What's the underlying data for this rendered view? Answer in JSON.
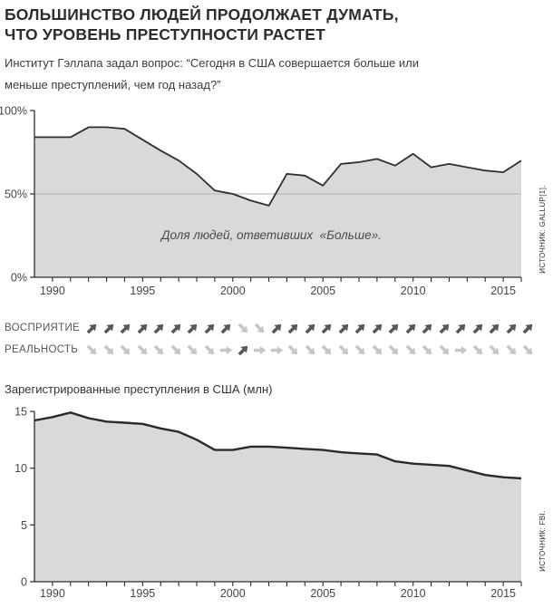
{
  "header": {
    "title_line1": "БОЛЬШИНСТВО ЛЮДЕЙ ПРОДОЛЖАЕТ ДУМАТЬ,",
    "title_line2": "ЧТО УРОВЕНЬ ПРЕСТУПНОСТИ РАСТЕТ",
    "subtitle_line1": "Институт Гэллапа задал вопрос: “Сегодня в США совершается больше или",
    "subtitle_line2": "меньше преступлений, чем год назад?”"
  },
  "perception_reality": {
    "perception_label": "ВОСПРИЯТИЕ",
    "reality_label": "РЕАЛЬНОСТЬ",
    "arrow_colors": {
      "dark": "#58585a",
      "light": "#c5c6c8"
    },
    "perception_pattern": [
      {
        "dir": "ne",
        "tone": "dark",
        "count": 9
      },
      {
        "dir": "se",
        "tone": "light",
        "count": 2
      },
      {
        "dir": "ne",
        "tone": "dark",
        "count": 16
      }
    ],
    "reality_pattern": [
      {
        "dir": "se",
        "tone": "light",
        "count": 8
      },
      {
        "dir": "e",
        "tone": "light",
        "count": 1
      },
      {
        "dir": "ne",
        "tone": "dark",
        "count": 1
      },
      {
        "dir": "e",
        "tone": "light",
        "count": 2
      },
      {
        "dir": "se",
        "tone": "light",
        "count": 10
      },
      {
        "dir": "e",
        "tone": "light",
        "count": 1
      },
      {
        "dir": "se",
        "tone": "light",
        "count": 4
      }
    ]
  },
  "chart_data": [
    {
      "type": "area",
      "title": "",
      "annotation": "Доля людей, ответивших  «Больше».",
      "source": "ИСТОЧНИК: GALLUP[1].",
      "xlabel": "",
      "ylabel": "",
      "xlim": [
        1989,
        2016
      ],
      "ylim": [
        0,
        100
      ],
      "xticks": [
        1990,
        1995,
        2000,
        2005,
        2010,
        2015
      ],
      "yticks": [
        {
          "value": 100,
          "label": "100%"
        },
        {
          "value": 50,
          "label": "50%"
        },
        {
          "value": 0,
          "label": "0%"
        }
      ],
      "gridline_at": 50,
      "fill_color": "#d9d9d9",
      "line_color": "#2f2f31",
      "x": [
        1989,
        1990,
        1991,
        1992,
        1993,
        1994,
        1996,
        1997,
        1998,
        1999,
        2000,
        2001,
        2002,
        2003,
        2004,
        2005,
        2006,
        2007,
        2008,
        2009,
        2010,
        2011,
        2012,
        2013,
        2014,
        2015,
        2016
      ],
      "values": [
        84,
        84,
        84,
        90,
        90,
        89,
        76,
        70,
        62,
        52,
        50,
        46,
        43,
        62,
        61,
        55,
        68,
        69,
        71,
        67,
        74,
        66,
        68,
        66,
        64,
        63,
        70
      ]
    },
    {
      "type": "area",
      "title": "Зарегистрированные преступления в США (млн)",
      "annotation": "",
      "source": "ИСТОЧНИК: FBI.",
      "xlabel": "",
      "ylabel": "",
      "xlim": [
        1989,
        2016
      ],
      "ylim": [
        0,
        15
      ],
      "xticks": [
        1990,
        1995,
        2000,
        2005,
        2010,
        2015
      ],
      "yticks": [
        {
          "value": 15,
          "label": "15"
        },
        {
          "value": 10,
          "label": "10"
        },
        {
          "value": 5,
          "label": "5"
        },
        {
          "value": 0,
          "label": "0"
        }
      ],
      "gridline_at": null,
      "fill_color": "#d9d9d9",
      "line_color": "#2a2a2c",
      "x": [
        1989,
        1990,
        1991,
        1992,
        1993,
        1994,
        1995,
        1996,
        1997,
        1998,
        1999,
        2000,
        2001,
        2002,
        2003,
        2004,
        2005,
        2006,
        2007,
        2008,
        2009,
        2010,
        2011,
        2012,
        2013,
        2014,
        2015,
        2016
      ],
      "values": [
        14.2,
        14.5,
        14.9,
        14.4,
        14.1,
        14.0,
        13.9,
        13.5,
        13.2,
        12.5,
        11.6,
        11.6,
        11.9,
        11.9,
        11.8,
        11.7,
        11.6,
        11.4,
        11.3,
        11.2,
        10.6,
        10.4,
        10.3,
        10.2,
        9.8,
        9.4,
        9.2,
        9.1
      ]
    }
  ]
}
